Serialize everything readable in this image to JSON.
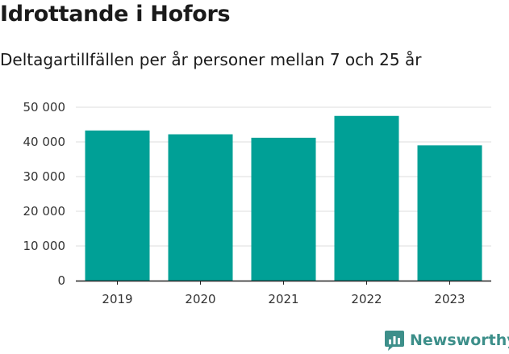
{
  "chart_data": {
    "type": "bar",
    "title": "Idrottande i Hofors",
    "subtitle": "Deltagartillfällen per år personer mellan 7 och 25 år",
    "categories": [
      "2019",
      "2020",
      "2021",
      "2022",
      "2023"
    ],
    "values": [
      43300,
      42200,
      41200,
      47500,
      39000
    ],
    "yticks": [
      0,
      10000,
      20000,
      30000,
      40000,
      50000
    ],
    "ytick_labels": [
      "0",
      "10 000",
      "20 000",
      "30 000",
      "40 000",
      "50 000"
    ],
    "ylim": [
      0,
      50000
    ],
    "xlabel": "",
    "ylabel": "",
    "grid": true,
    "bar_color": "#00a096",
    "grid_color": "#dddddd",
    "axis_color": "#222222"
  },
  "branding": {
    "logo_text": "Newsworthy",
    "logo_color": "#3d8f8a",
    "logo_icon": "bar-chart-speech-bubble-icon"
  }
}
